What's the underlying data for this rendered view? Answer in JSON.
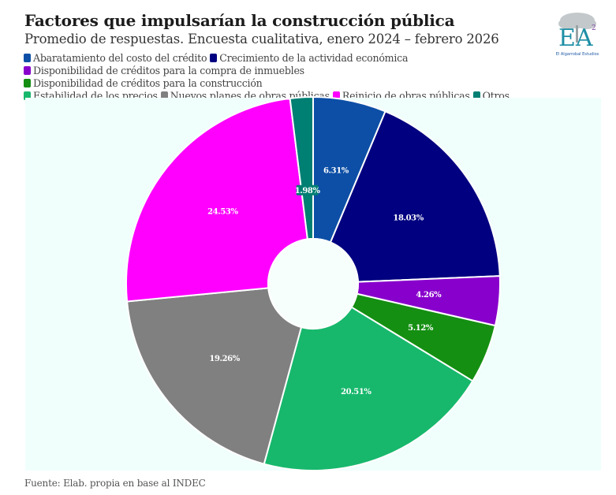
{
  "header": {
    "title": "Factores que impulsarían la construcción pública",
    "subtitle": "Promedio de respuestas. Encuesta cualitativa, enero 2024 – febrero 2026"
  },
  "logo": {
    "initials": "EA",
    "superscript": "2",
    "caption": "El Algarrobal Estudios"
  },
  "footer": {
    "source": "Fuente: Elab. propia en base al INDEC"
  },
  "chart_data": {
    "type": "pie",
    "variant": "donut",
    "title": "Factores que impulsarían la construcción pública",
    "subtitle": "Promedio de respuestas. Encuesta cualitativa, enero 2024 – febrero 2026",
    "start_angle": "12 o'clock",
    "direction": "clockwise",
    "legend_position": "top",
    "unit": "%",
    "slices": [
      {
        "label": "Abaratamiento del costo del crédito",
        "value": 6.31,
        "display": "6.31%",
        "color": "#0d4fa6"
      },
      {
        "label": "Crecimiento de la actividad económica",
        "value": 18.03,
        "display": "18.03%",
        "color": "#000080"
      },
      {
        "label": "Disponibilidad de créditos para la compra de inmuebles",
        "value": 4.26,
        "display": "4.26%",
        "color": "#8800cc"
      },
      {
        "label": "Disponibilidad de créditos para la construcción",
        "value": 5.12,
        "display": "5.12%",
        "color": "#148f12"
      },
      {
        "label": "Estabilidad de los precios",
        "value": 20.51,
        "display": "20.51%",
        "color": "#17b86c"
      },
      {
        "label": "Nuevos planes de obras públicas",
        "value": 19.26,
        "display": "19.26%",
        "color": "#808080"
      },
      {
        "label": "Reinicio de obras públicas",
        "value": 24.53,
        "display": "24.53%",
        "color": "#ff00ff"
      },
      {
        "label": "Otros",
        "value": 1.98,
        "display": "1.98%",
        "color": "#007f73"
      }
    ]
  }
}
